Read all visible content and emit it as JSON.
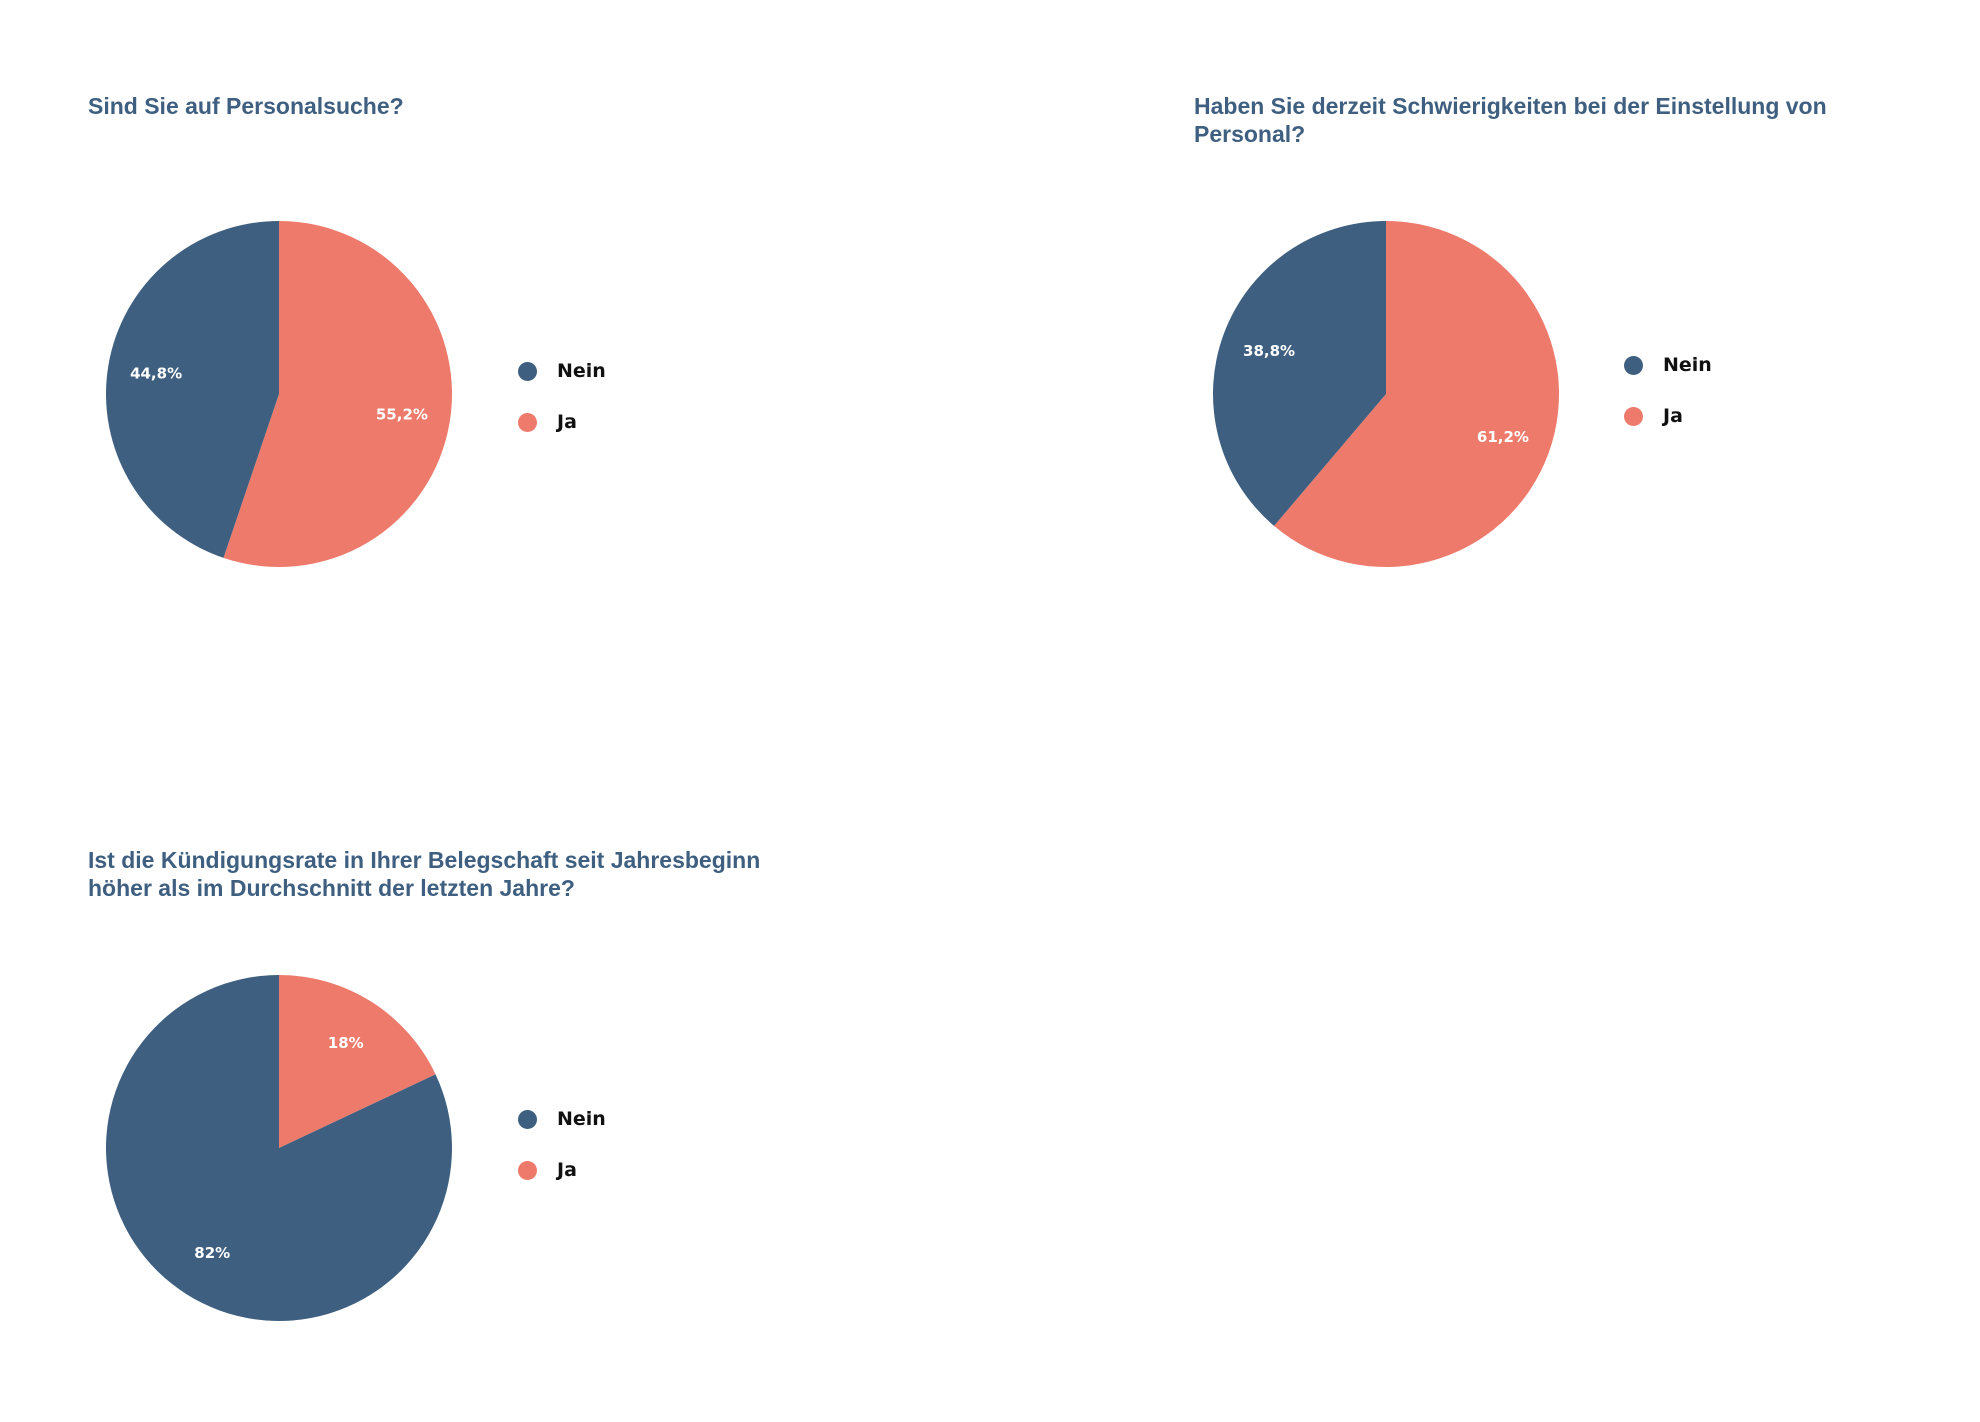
{
  "colors": {
    "nein": "#3e5f80",
    "ja": "#ee7a6b",
    "title": "#3e5f80",
    "text": "#111111"
  },
  "chart_data": [
    {
      "type": "pie",
      "title": "Sind Sie auf Personalsuche?",
      "legend_position": "right",
      "series": [
        {
          "labels": [
            "Nein",
            "Ja"
          ],
          "values": [
            44.8,
            55.2
          ],
          "value_labels": [
            "44,8%",
            "55,2%"
          ]
        }
      ]
    },
    {
      "type": "pie",
      "title": "Haben Sie derzeit Schwierigkeiten bei der Einstellung von Personal?",
      "legend_position": "right",
      "series": [
        {
          "labels": [
            "Nein",
            "Ja"
          ],
          "values": [
            38.8,
            61.2
          ],
          "value_labels": [
            "38,8%",
            "61,2%"
          ]
        }
      ]
    },
    {
      "type": "pie",
      "title": "Ist die Kündigungsrate in Ihrer Belegschaft seit Jahresbeginn höher als im Durchschnitt der letzten Jahre?",
      "legend_position": "right",
      "series": [
        {
          "labels": [
            "Nein",
            "Ja"
          ],
          "values": [
            82,
            18
          ],
          "value_labels": [
            "82%",
            "18%"
          ]
        }
      ]
    }
  ]
}
